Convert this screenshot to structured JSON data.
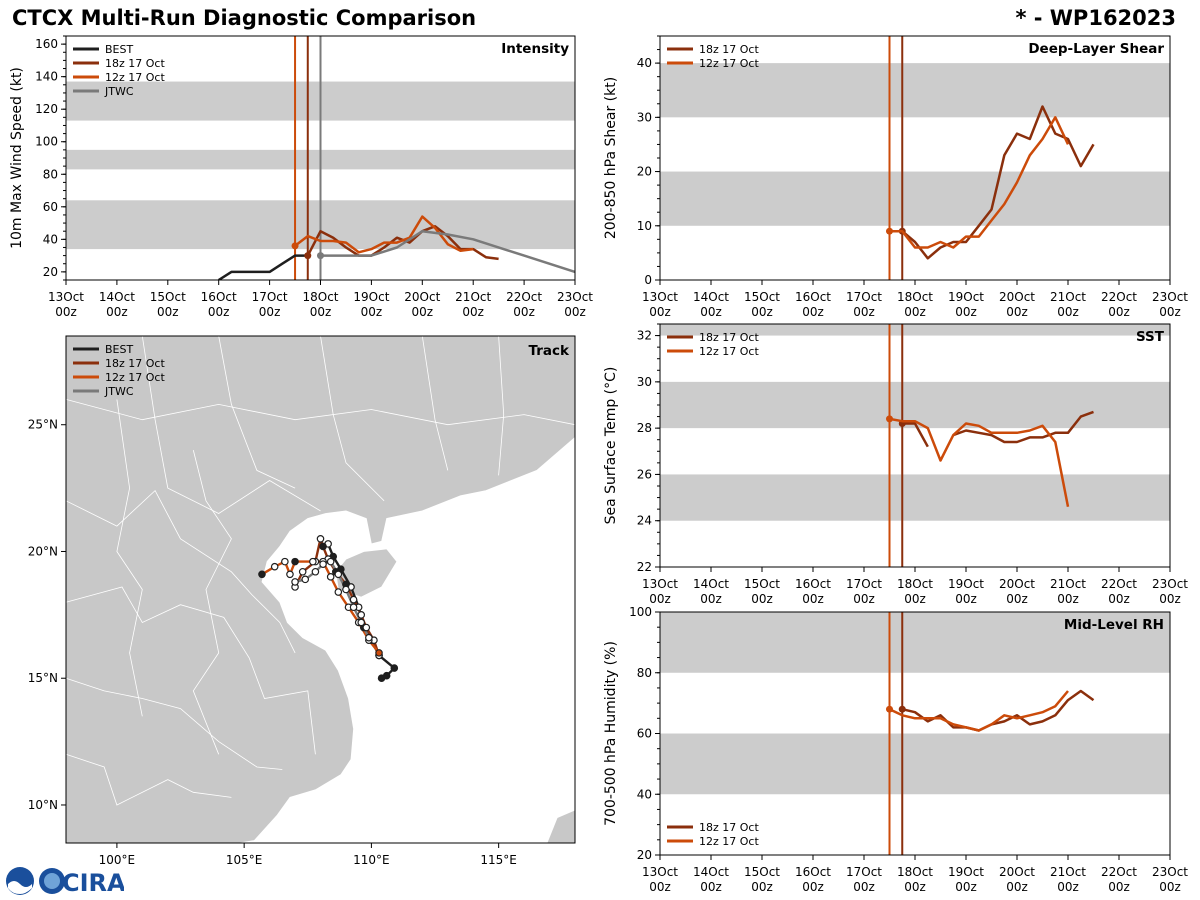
{
  "header": {
    "title_left": "CTCX Multi-Run Diagnostic Comparison",
    "title_right": "* - WP162023"
  },
  "logo": {
    "text": "CIRA"
  },
  "colors": {
    "best": "#1f1f1f",
    "run18": "#8b2f0c",
    "run12": "#cc4b0a",
    "jtwc": "#7a7a7a",
    "band": "#cccccc",
    "land": "#c8c8c8"
  },
  "time_axis": {
    "ticks": [
      "13Oct\n00z",
      "14Oct\n00z",
      "15Oct\n00z",
      "16Oct\n00z",
      "17Oct\n00z",
      "18Oct\n00z",
      "19Oct\n00z",
      "20Oct\n00z",
      "21Oct\n00z",
      "22Oct\n00z",
      "23Oct\n00z"
    ],
    "range_days": [
      0,
      10
    ]
  },
  "chart_data": [
    {
      "id": "intensity",
      "type": "line",
      "title": "Intensity",
      "ylabel": "10m Max Wind Speed (kt)",
      "ylim": [
        15,
        165
      ],
      "yticks": [
        20,
        40,
        60,
        80,
        100,
        120,
        140,
        160
      ],
      "bands": [
        [
          34,
          64
        ],
        [
          83,
          95
        ],
        [
          113,
          137
        ]
      ],
      "vlines": [
        {
          "x": 4.5,
          "series": "12z 17 Oct"
        },
        {
          "x": 4.75,
          "series": "18z 17 Oct"
        },
        {
          "x": 5.0,
          "series": "JTWC"
        }
      ],
      "legend": [
        "BEST",
        "18z 17 Oct",
        "12z 17 Oct",
        "JTWC"
      ],
      "series": [
        {
          "name": "BEST",
          "color_key": "best",
          "x": [
            3.0,
            3.25,
            3.5,
            3.75,
            4.0,
            4.25,
            4.5,
            4.75
          ],
          "y": [
            15,
            20,
            20,
            20,
            20,
            25,
            30,
            30
          ]
        },
        {
          "name": "18z 17 Oct",
          "color_key": "run18",
          "x": [
            4.75,
            5.0,
            5.25,
            5.5,
            5.75,
            6.0,
            6.25,
            6.5,
            6.75,
            7.0,
            7.25,
            7.5,
            7.75,
            8.0,
            8.25,
            8.5
          ],
          "y": [
            30,
            45,
            41,
            35,
            30,
            30,
            35,
            41,
            38,
            45,
            48,
            42,
            34,
            34,
            29,
            28
          ]
        },
        {
          "name": "12z 17 Oct",
          "color_key": "run12",
          "x": [
            4.5,
            4.75,
            5.0,
            5.25,
            5.5,
            5.75,
            6.0,
            6.25,
            6.5,
            6.75,
            7.0,
            7.25,
            7.5,
            7.75,
            8.0
          ],
          "y": [
            36,
            42,
            39,
            39,
            38,
            32,
            34,
            38,
            38,
            41,
            54,
            47,
            37,
            33,
            34
          ]
        },
        {
          "name": "JTWC",
          "color_key": "jtwc",
          "x": [
            5.0,
            5.5,
            6.0,
            6.5,
            7.0,
            7.5,
            8.0,
            9.0,
            10.0
          ],
          "y": [
            30,
            30,
            30,
            35,
            45,
            43,
            40,
            30,
            20
          ]
        }
      ]
    },
    {
      "id": "shear",
      "type": "line",
      "title": "Deep-Layer Shear",
      "ylabel": "200-850 hPa Shear (kt)",
      "ylim": [
        0,
        45
      ],
      "yticks": [
        0,
        10,
        20,
        30,
        40
      ],
      "bands": [
        [
          10,
          20
        ],
        [
          30,
          40
        ]
      ],
      "vlines": [
        {
          "x": 4.5,
          "series": "12z 17 Oct"
        },
        {
          "x": 4.75,
          "series": "18z 17 Oct"
        }
      ],
      "legend": [
        "18z 17 Oct",
        "12z 17 Oct"
      ],
      "series": [
        {
          "name": "18z 17 Oct",
          "color_key": "run18",
          "x": [
            4.75,
            5.0,
            5.25,
            5.5,
            5.75,
            6.0,
            6.25,
            6.5,
            6.75,
            7.0,
            7.25,
            7.5,
            7.75,
            8.0,
            8.25,
            8.5
          ],
          "y": [
            9,
            7,
            4,
            6,
            7,
            7,
            10,
            13,
            23,
            27,
            26,
            32,
            27,
            26,
            21,
            25
          ]
        },
        {
          "name": "12z 17 Oct",
          "color_key": "run12",
          "x": [
            4.5,
            4.75,
            5.0,
            5.25,
            5.5,
            5.75,
            6.0,
            6.25,
            6.5,
            6.75,
            7.0,
            7.25,
            7.5,
            7.75,
            8.0
          ],
          "y": [
            9,
            9,
            6,
            6,
            7,
            6,
            8,
            8,
            11,
            14,
            18,
            23,
            26,
            30,
            25
          ]
        }
      ]
    },
    {
      "id": "sst",
      "type": "line",
      "title": "SST",
      "ylabel": "Sea Surface Temp (°C)",
      "ylim": [
        22,
        32.5
      ],
      "yticks": [
        22,
        24,
        26,
        28,
        30,
        32
      ],
      "bands": [
        [
          24,
          26
        ],
        [
          28,
          30
        ],
        [
          32,
          32.5
        ]
      ],
      "vlines": [
        {
          "x": 4.5,
          "series": "12z 17 Oct"
        },
        {
          "x": 4.75,
          "series": "18z 17 Oct"
        }
      ],
      "legend": [
        "18z 17 Oct",
        "12z 17 Oct"
      ],
      "series": [
        {
          "name": "18z 17 Oct",
          "color_key": "run18",
          "x": [
            4.75,
            5.0,
            5.25
          ],
          "y": [
            28.2,
            28.2,
            27.2
          ]
        },
        {
          "name": "18z 17 Oct b",
          "color_key": "run18",
          "x": [
            5.75,
            6.0,
            6.25,
            6.5,
            6.75,
            7.0,
            7.25,
            7.5,
            7.75,
            8.0,
            8.25,
            8.5
          ],
          "y": [
            27.7,
            27.9,
            27.8,
            27.7,
            27.4,
            27.4,
            27.6,
            27.6,
            27.8,
            27.8,
            28.5,
            28.7
          ]
        },
        {
          "name": "12z 17 Oct",
          "color_key": "run12",
          "x": [
            4.5,
            4.75,
            5.0,
            5.25,
            5.5,
            5.75,
            6.0,
            6.25,
            6.5,
            6.75,
            7.0,
            7.25,
            7.5,
            7.75,
            8.0
          ],
          "y": [
            28.4,
            28.3,
            28.3,
            28.0,
            26.6,
            27.7,
            28.2,
            28.1,
            27.8,
            27.8,
            27.8,
            27.9,
            28.1,
            27.4,
            24.6
          ]
        }
      ]
    },
    {
      "id": "rh",
      "type": "line",
      "title": "Mid-Level RH",
      "ylabel": "700-500 hPa Humidity (%)",
      "ylim": [
        20,
        100
      ],
      "yticks": [
        20,
        40,
        60,
        80,
        100
      ],
      "bands": [
        [
          40,
          60
        ],
        [
          80,
          100
        ]
      ],
      "vlines": [
        {
          "x": 4.5,
          "series": "12z 17 Oct"
        },
        {
          "x": 4.75,
          "series": "18z 17 Oct"
        }
      ],
      "legend": [
        "18z 17 Oct",
        "12z 17 Oct"
      ],
      "series": [
        {
          "name": "18z 17 Oct",
          "color_key": "run18",
          "x": [
            4.75,
            5.0,
            5.25,
            5.5,
            5.75,
            6.0,
            6.25,
            6.5,
            6.75,
            7.0,
            7.25,
            7.5,
            7.75,
            8.0,
            8.25,
            8.5
          ],
          "y": [
            68,
            67,
            64,
            66,
            62,
            62,
            61,
            63,
            64,
            66,
            63,
            64,
            66,
            71,
            74,
            71
          ]
        },
        {
          "name": "12z 17 Oct",
          "color_key": "run12",
          "x": [
            4.5,
            4.75,
            5.0,
            5.25,
            5.5,
            5.75,
            6.0,
            6.25,
            6.5,
            6.75,
            7.0,
            7.25,
            7.5,
            7.75,
            8.0
          ],
          "y": [
            68,
            66,
            65,
            65,
            65,
            63,
            62,
            61,
            63,
            66,
            65,
            66,
            67,
            69,
            74
          ]
        }
      ]
    },
    {
      "id": "track",
      "type": "scatter",
      "title": "Track",
      "xlim": [
        98,
        118
      ],
      "ylim": [
        8.5,
        28.5
      ],
      "xticks": [
        100,
        105,
        110,
        115
      ],
      "xtick_labels": [
        "100°E",
        "105°E",
        "110°E",
        "115°E"
      ],
      "yticks": [
        10,
        15,
        20,
        25
      ],
      "ytick_labels": [
        "10°N",
        "15°N",
        "20°N",
        "25°N"
      ],
      "legend": [
        "BEST",
        "18z 17 Oct",
        "12z 17 Oct",
        "JTWC"
      ],
      "series": [
        {
          "name": "BEST",
          "color_key": "best",
          "lon": [
            110.4,
            110.6,
            110.9,
            110.3,
            110.0,
            109.7,
            109.5,
            109.2,
            108.8,
            108.5,
            108.3
          ],
          "lat": [
            15.0,
            15.1,
            15.4,
            15.9,
            16.5,
            17.0,
            17.8,
            18.6,
            19.3,
            19.8,
            20.3
          ],
          "filled": [
            true,
            true,
            true,
            false,
            false,
            true,
            false,
            false,
            true,
            true,
            false
          ]
        },
        {
          "name": "18z 17 Oct",
          "color_key": "run18",
          "lon": [
            110.3,
            110.1,
            109.8,
            109.6,
            109.3,
            109.0,
            108.6,
            108.3,
            108.1,
            108.0,
            107.8,
            107.3,
            107.0
          ],
          "lat": [
            15.9,
            16.5,
            17.0,
            17.5,
            18.1,
            18.7,
            19.2,
            19.7,
            20.2,
            20.5,
            19.6,
            19.2,
            18.6
          ],
          "filled": [
            false,
            false,
            false,
            false,
            false,
            true,
            true,
            false,
            true,
            false,
            false,
            false,
            false
          ]
        },
        {
          "name": "12z 17 Oct",
          "color_key": "run12",
          "lon": [
            110.3,
            109.9,
            109.5,
            109.1,
            108.7,
            108.4,
            108.1,
            107.7,
            107.0,
            106.8,
            106.6,
            106.2,
            105.7
          ],
          "lat": [
            16.0,
            16.5,
            17.2,
            17.8,
            18.4,
            19.0,
            19.6,
            19.6,
            19.6,
            19.1,
            19.6,
            19.4,
            19.1
          ],
          "filled": [
            true,
            false,
            false,
            false,
            false,
            false,
            false,
            false,
            true,
            false,
            false,
            false,
            true
          ]
        },
        {
          "name": "JTWC",
          "color_key": "jtwc",
          "lon": [
            109.9,
            109.6,
            109.3,
            109.0,
            108.7,
            108.4,
            108.1,
            107.8,
            107.4,
            107.0
          ],
          "lat": [
            16.6,
            17.2,
            17.8,
            18.5,
            19.1,
            19.6,
            19.5,
            19.2,
            18.9,
            18.8
          ],
          "filled": [
            false,
            false,
            false,
            false,
            false,
            false,
            false,
            false,
            false,
            false
          ]
        }
      ]
    }
  ]
}
